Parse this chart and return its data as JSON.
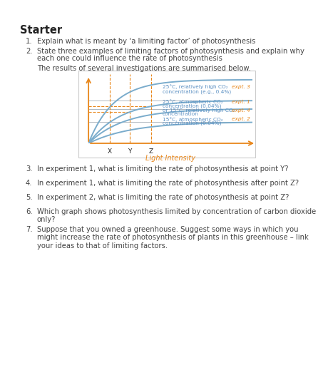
{
  "title": "Starter",
  "bg_color": "#ffffff",
  "text_color": "#333333",
  "orange_color": "#e8861a",
  "blue_color": "#5a8fc2",
  "gray_text": "#444444",
  "dark_text": "#222222",
  "curve_color": "#7aaccc",
  "plateau_color": "#b0b8c0",
  "q1": "Explain what is meant by ‘a limiting factor’ of photosynthesis",
  "q2a": "State three examples of limiting factors of photosynthesis and explain why",
  "q2b": "each one could influence the rate of photosynthesis",
  "intro": "The results of several investigations are summarised below.",
  "label3a": "25°C, relatively high CO₂",
  "label3b": "concentration (e.g., 0.4%)",
  "label1a": "25°C, atmospheric CO₂",
  "label1b": "concentration (0.04%)",
  "label4a": "or 15°C, relatively high CO₂",
  "label4b": "concentration",
  "label2a": "15°C, atmospheric CO₂",
  "label2b": "concentration (0.04%)",
  "expt3": "expt. 3",
  "expt1": "expt. 1",
  "expt4": "expt. 4",
  "expt2": "expt. 2",
  "xlabel": "Light Intensity",
  "q3": "In experiment 1, what is limiting the rate of photosynthesis at point Y?",
  "q4": "In experiment 1, what is limiting the rate of photosynthesis after point Z?",
  "q5": "In experiment 2, what is limiting the rate of photosynthesis at point Z?",
  "q6a": "Which graph shows photosynthesis limited by concentration of carbon dioxide",
  "q6b": "only?",
  "q7a": "Suppose that you owned a greenhouse. Suggest some ways in which you",
  "q7b": "might increase the rate of photosynthesis of plants in this greenhouse – link",
  "q7c": "your ideas to that of limiting factors."
}
